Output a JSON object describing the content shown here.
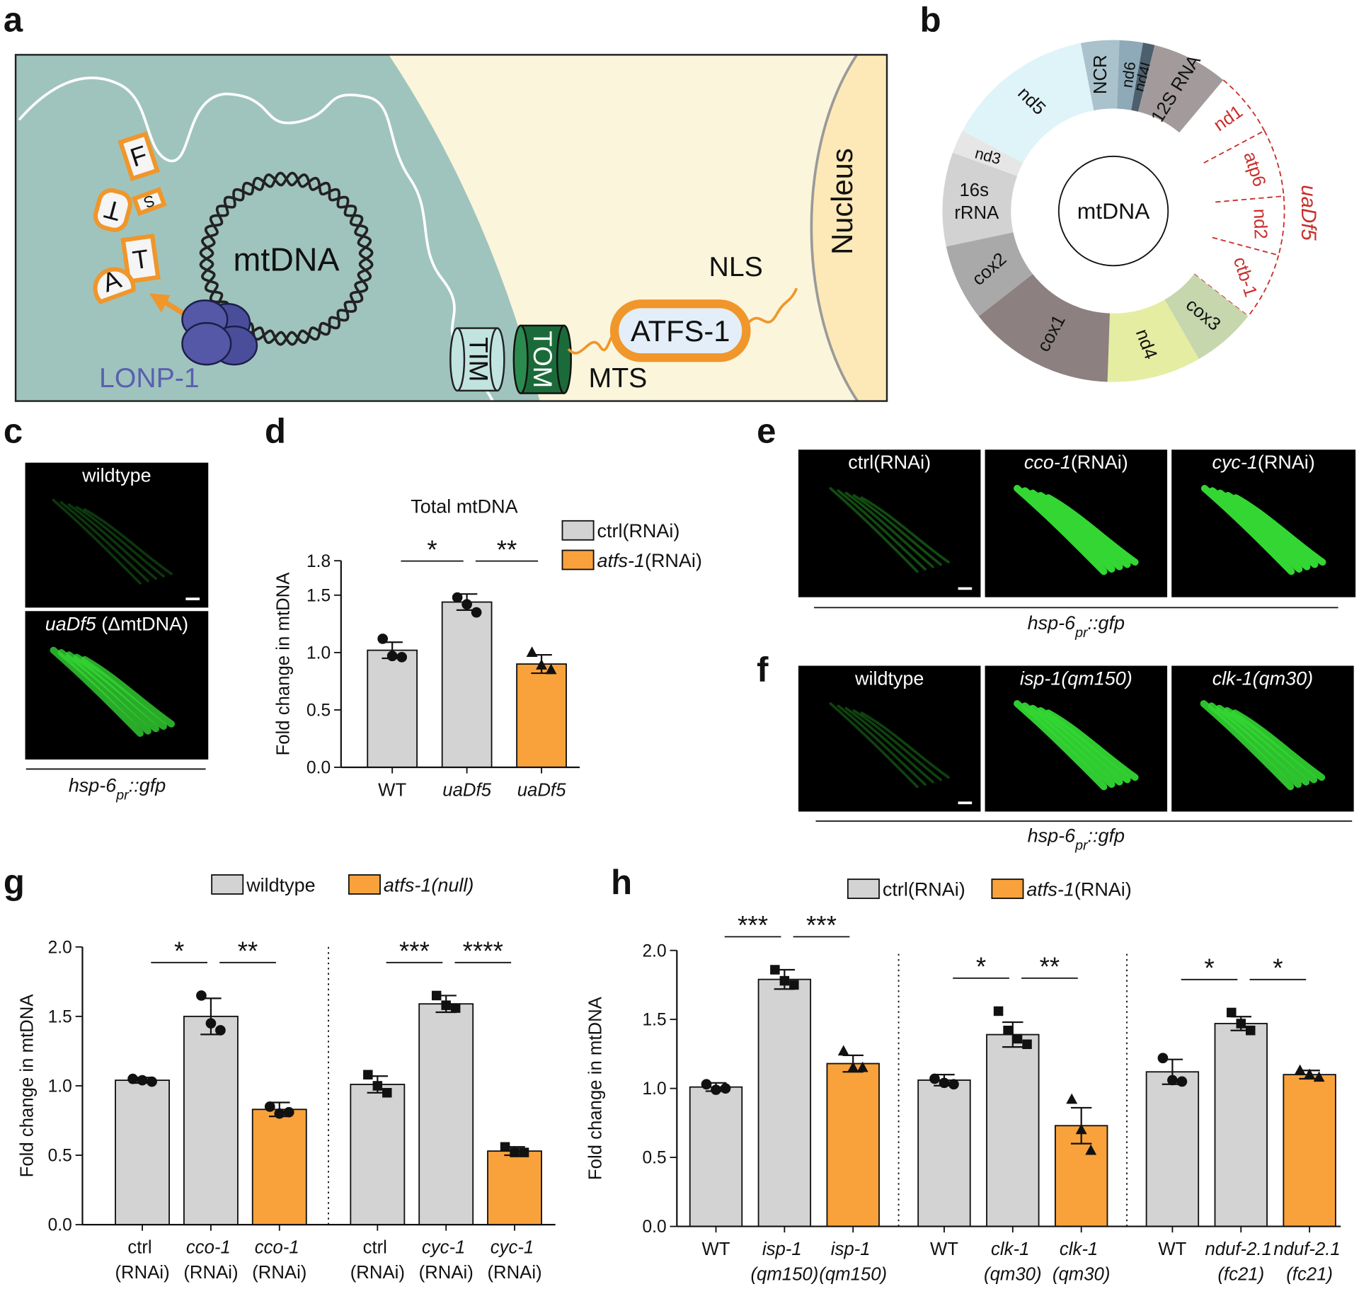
{
  "panel_labels": [
    "a",
    "b",
    "c",
    "d",
    "e",
    "f",
    "g",
    "h"
  ],
  "diagram": {
    "mtdna": "mtDNA",
    "protease": "LONP-1",
    "nucleus": "Nucleus",
    "nls": "NLS",
    "protein": "ATFS-1",
    "mts": "MTS",
    "tim": "TIM",
    "tom": "TOM",
    "fragments": [
      "F",
      "S",
      "T",
      "T",
      "A"
    ]
  },
  "genome": {
    "center": "mtDNA",
    "deletion": "uaDf5",
    "deletion_color": "#c8302c",
    "segments": [
      {
        "label": "NCR",
        "color": "#a9c2cc"
      },
      {
        "label": "nd6",
        "color": "#8ea9b8"
      },
      {
        "label": "nd4l",
        "color": "#4c5f6c"
      },
      {
        "label": "12S RNA",
        "color": "#a39b9b"
      },
      {
        "label": "nd1",
        "deleted": true
      },
      {
        "label": "atp6",
        "deleted": true
      },
      {
        "label": "nd2",
        "deleted": true
      },
      {
        "label": "ctb-1",
        "deleted": true
      },
      {
        "label": "cox3",
        "color": "#c6d7ad"
      },
      {
        "label": "nd4",
        "color": "#e5eda3"
      },
      {
        "label": "cox1",
        "color": "#8c8080"
      },
      {
        "label": "cox2",
        "color": "#a9a9a9"
      },
      {
        "label": "16s rRNA",
        "color": "#d2d2d2"
      },
      {
        "label": "nd3",
        "color": "#e6e6e6"
      },
      {
        "label": "nd5",
        "color": "#dff4f9"
      }
    ]
  },
  "images": [
    {
      "labels": [
        "wildtype",
        "uaDf5 (ΔmtDNA)"
      ],
      "label_style": [
        "normal",
        "first-italic"
      ],
      "caption": [
        "hsp-6",
        "pr",
        "::gfp"
      ]
    },
    {
      "labels": [
        "ctrl(RNAi)",
        "cco-1(RNAi)",
        "cyc-1(RNAi)"
      ],
      "label_style": [
        "normal",
        "first-italic",
        "first-italic"
      ],
      "caption": [
        "hsp-6",
        "pr",
        "::gfp"
      ]
    },
    {
      "labels": [
        "wildtype",
        "isp-1(qm150)",
        "clk-1(qm30)"
      ],
      "label_style": [
        "normal",
        "italic",
        "italic"
      ],
      "caption": [
        "hsp-6",
        "pr",
        "::gfp"
      ]
    }
  ],
  "chart_data": [
    {
      "type": "bar",
      "title": "Total mtDNA",
      "ylabel": "Fold change in mtDNA",
      "categories": [
        "WT",
        "uaDf5",
        "uaDf5"
      ],
      "category_style": [
        "normal",
        "italic",
        "italic"
      ],
      "ylim": [
        0,
        1.8
      ],
      "yticks": [
        {
          "value": 0,
          "label": "0.0"
        },
        0.5,
        {
          "value": 1,
          "label": "1.0"
        },
        1.5,
        1.8
      ],
      "series": [
        {
          "name": "ctrl(RNAi)",
          "name_style": "normal",
          "color": "#d3d3d3",
          "values": [
            1.02,
            1.44,
            null
          ],
          "errors": [
            0.07,
            0.07,
            null
          ],
          "points": [
            [
              1.12,
              0.97,
              0.96
            ],
            [
              1.48,
              1.42,
              1.35
            ],
            null
          ]
        },
        {
          "name": "atfs-1(RNAi)",
          "name_style": "first-italic",
          "color": "#f9a23c",
          "values": [
            null,
            null,
            0.9
          ],
          "errors": [
            null,
            null,
            0.08
          ],
          "points": [
            null,
            null,
            [
              1.0,
              0.89,
              0.85
            ]
          ]
        }
      ],
      "markers": [
        "circle",
        "circle",
        "triangle"
      ],
      "significance": [
        {
          "label": "*",
          "bars": [
            0,
            1
          ]
        },
        {
          "label": "**",
          "bars": [
            1,
            2
          ]
        }
      ],
      "group_size": 3
    },
    {
      "type": "bar",
      "ylabel": "Fold change in mtDNA",
      "categories": [
        "ctrl (RNAi)",
        "cco-1 (RNAi)",
        "cco-1 (RNAi)",
        "ctrl (RNAi)",
        "cyc-1 (RNAi)",
        "cyc-1 (RNAi)"
      ],
      "category_style": [
        "normal",
        "first-italic",
        "first-italic",
        "normal",
        "first-italic",
        "first-italic"
      ],
      "ylim": [
        0,
        2
      ],
      "yticks": [
        {
          "value": 0,
          "label": "0.0"
        },
        0.5,
        {
          "value": 1,
          "label": "1.0"
        },
        1.5,
        {
          "value": 2,
          "label": "2.0"
        }
      ],
      "series": [
        {
          "name": "wildtype",
          "name_style": "normal",
          "color": "#d3d3d3",
          "values": [
            1.04,
            1.5,
            null,
            1.01,
            1.59,
            null
          ],
          "errors": [
            0.02,
            0.13,
            null,
            0.06,
            0.06,
            null
          ],
          "points": [
            [
              1.05,
              1.04,
              1.03
            ],
            [
              1.65,
              1.45,
              1.4
            ],
            null,
            [
              1.08,
              1.0,
              0.95
            ],
            [
              1.65,
              1.58,
              1.56
            ],
            null
          ]
        },
        {
          "name": "atfs-1(null)",
          "name_style": "italic",
          "color": "#f9a23c",
          "values": [
            null,
            null,
            0.83,
            null,
            null,
            0.53
          ],
          "errors": [
            null,
            null,
            0.05,
            null,
            null,
            0.03
          ],
          "points": [
            null,
            null,
            [
              0.85,
              0.8,
              0.81
            ],
            null,
            null,
            [
              0.56,
              0.52,
              0.52
            ]
          ]
        }
      ],
      "markers": [
        "circle",
        "circle",
        "circle",
        "square",
        "square",
        "square"
      ],
      "significance": [
        {
          "label": "*",
          "bars": [
            0,
            1
          ]
        },
        {
          "label": "**",
          "bars": [
            1,
            2
          ]
        },
        {
          "label": "***",
          "bars": [
            3,
            4
          ]
        },
        {
          "label": "****",
          "bars": [
            4,
            5
          ]
        }
      ],
      "group_size": 3
    },
    {
      "type": "bar",
      "ylabel": "Fold change in mtDNA",
      "categories": [
        "WT",
        "isp-1 (qm150)",
        "isp-1 (qm150)",
        "WT",
        "clk-1 (qm30)",
        "clk-1 (qm30)",
        "WT",
        "nduf-2.1 (fc21)",
        "nduf-2.1 (fc21)"
      ],
      "category_style": [
        "normal",
        "italic",
        "italic",
        "normal",
        "italic",
        "italic",
        "normal",
        "italic",
        "italic"
      ],
      "ylim": [
        0,
        2
      ],
      "yticks": [
        {
          "value": 0,
          "label": "0.0"
        },
        0.5,
        {
          "value": 1,
          "label": "1.0"
        },
        1.5,
        {
          "value": 2,
          "label": "2.0"
        }
      ],
      "series": [
        {
          "name": "ctrl(RNAi)",
          "name_style": "normal",
          "color": "#d3d3d3",
          "values": [
            1.01,
            1.79,
            null,
            1.06,
            1.39,
            null,
            1.12,
            1.47,
            null
          ],
          "errors": [
            0.03,
            0.07,
            null,
            0.04,
            0.09,
            null,
            0.09,
            0.05,
            null
          ],
          "points": [
            [
              1.03,
              0.99,
              1.0
            ],
            [
              1.86,
              1.78,
              1.75
            ],
            null,
            [
              1.07,
              1.04,
              1.03
            ],
            [
              1.56,
              1.42,
              1.36,
              1.32
            ],
            null,
            [
              1.22,
              1.06,
              1.05
            ],
            [
              1.55,
              1.47,
              1.42
            ],
            null
          ]
        },
        {
          "name": "atfs-1(RNAi)",
          "name_style": "first-italic",
          "color": "#f9a23c",
          "values": [
            null,
            null,
            1.18,
            null,
            null,
            0.73,
            null,
            null,
            1.1
          ],
          "errors": [
            null,
            null,
            0.06,
            null,
            null,
            0.13,
            null,
            null,
            0.03
          ],
          "points": [
            null,
            null,
            [
              1.27,
              1.15,
              1.15
            ],
            null,
            null,
            [
              0.92,
              0.7,
              0.55
            ],
            null,
            null,
            [
              1.13,
              1.1,
              1.08
            ]
          ]
        }
      ],
      "markers": [
        "circle",
        "square",
        "triangle",
        "circle",
        "square",
        "triangle",
        "circle",
        "square",
        "triangle"
      ],
      "significance": [
        {
          "label": "***",
          "bars": [
            0,
            1
          ]
        },
        {
          "label": "***",
          "bars": [
            1,
            2
          ]
        },
        {
          "label": "*",
          "bars": [
            3,
            4
          ]
        },
        {
          "label": "**",
          "bars": [
            4,
            5
          ]
        },
        {
          "label": "*",
          "bars": [
            6,
            7
          ]
        },
        {
          "label": "*",
          "bars": [
            7,
            8
          ]
        }
      ],
      "group_size": 3
    }
  ]
}
